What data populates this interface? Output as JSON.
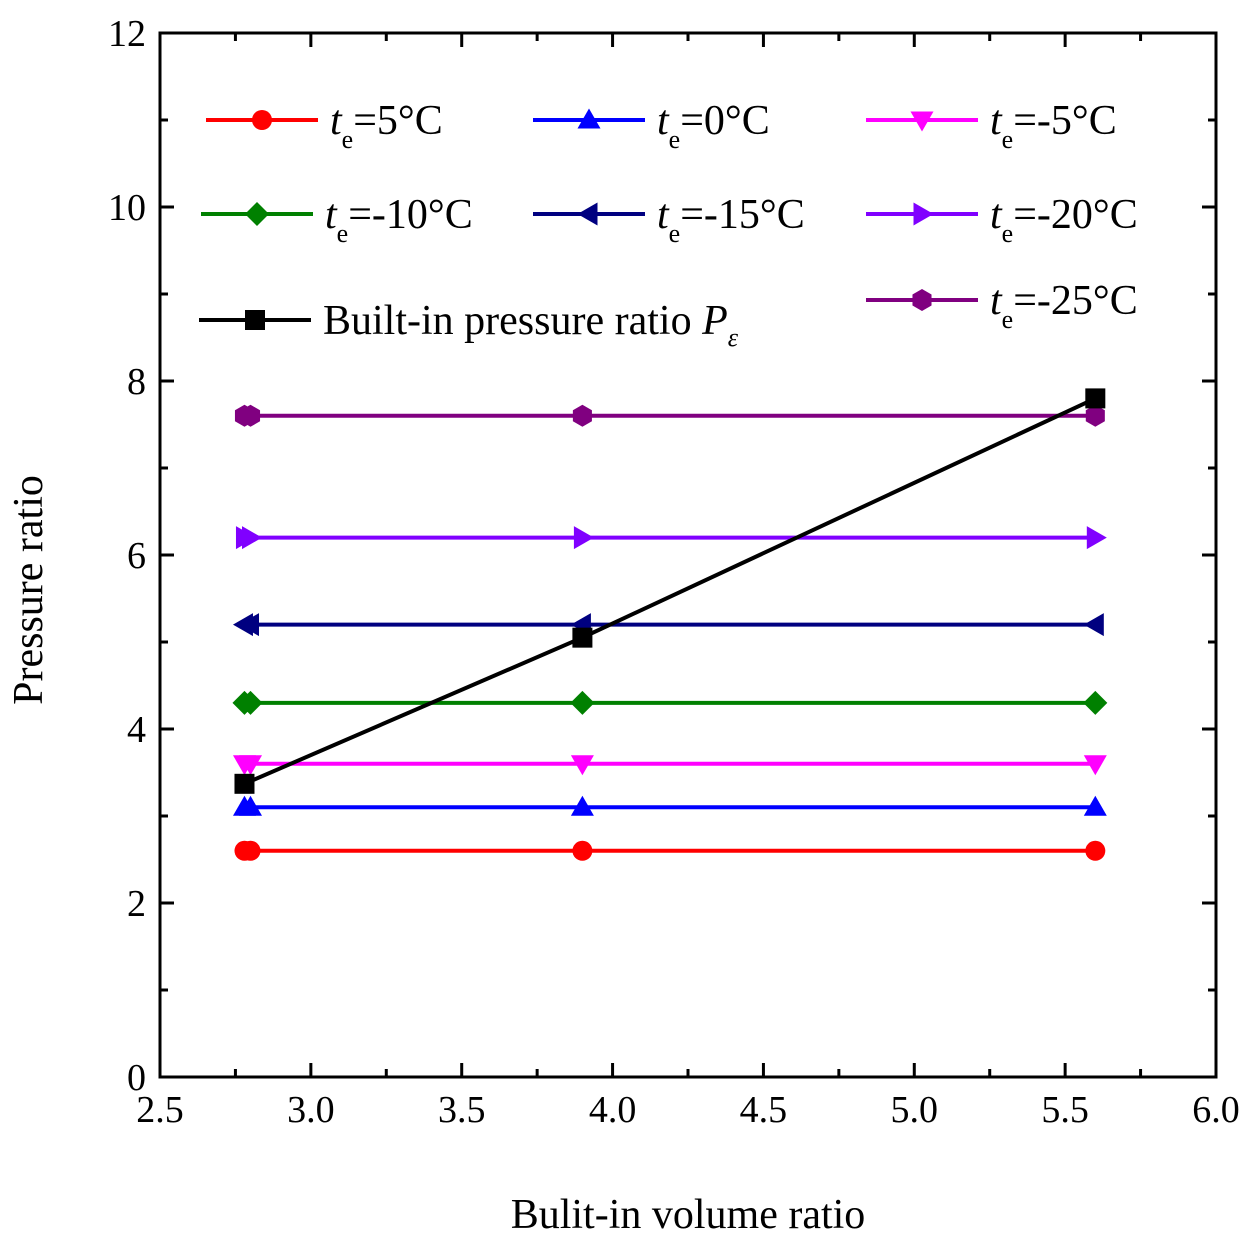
{
  "chart_data": {
    "type": "line",
    "title": "",
    "xlabel": "Bulit-in volume ratio",
    "ylabel": "Pressure ratio",
    "xlim": [
      2.5,
      6.0
    ],
    "ylim": [
      0,
      12
    ],
    "x_ticks": [
      "2.5",
      "3.0",
      "3.5",
      "4.0",
      "4.5",
      "5.0",
      "5.5",
      "6.0"
    ],
    "y_ticks": [
      "0",
      "2",
      "4",
      "6",
      "8",
      "10",
      "12"
    ],
    "grid": false,
    "legend_position": "top",
    "series": [
      {
        "name": "te=5°C",
        "label_var": "t",
        "label_sub": "e",
        "label_rest": "=5°C",
        "color": "#ff0000",
        "marker": "circle",
        "x": [
          2.78,
          2.8,
          3.9,
          5.6
        ],
        "y": [
          2.6,
          2.6,
          2.6,
          2.6
        ]
      },
      {
        "name": "te=0°C",
        "label_var": "t",
        "label_sub": "e",
        "label_rest": "=0°C",
        "color": "#0000ff",
        "marker": "triangle-up",
        "x": [
          2.78,
          2.8,
          3.9,
          5.6
        ],
        "y": [
          3.1,
          3.1,
          3.1,
          3.1
        ]
      },
      {
        "name": "te=-5°C",
        "label_var": "t",
        "label_sub": "e",
        "label_rest": "=-5°C",
        "color": "#ff00ff",
        "marker": "triangle-down",
        "x": [
          2.78,
          2.8,
          3.9,
          5.6
        ],
        "y": [
          3.6,
          3.6,
          3.6,
          3.6
        ]
      },
      {
        "name": "te=-10°C",
        "label_var": "t",
        "label_sub": "e",
        "label_rest": "=-10°C",
        "color": "#008000",
        "marker": "diamond",
        "x": [
          2.78,
          2.8,
          3.9,
          5.6
        ],
        "y": [
          4.3,
          4.3,
          4.3,
          4.3
        ]
      },
      {
        "name": "te=-15°C",
        "label_var": "t",
        "label_sub": "e",
        "label_rest": "=-15°C",
        "color": "#000080",
        "marker": "triangle-left",
        "x": [
          2.78,
          2.8,
          3.9,
          5.6
        ],
        "y": [
          5.2,
          5.2,
          5.2,
          5.2
        ]
      },
      {
        "name": "te=-20°C",
        "label_var": "t",
        "label_sub": "e",
        "label_rest": "=-20°C",
        "color": "#8000ff",
        "marker": "triangle-right",
        "x": [
          2.78,
          2.8,
          3.9,
          5.6
        ],
        "y": [
          6.2,
          6.2,
          6.2,
          6.2
        ]
      },
      {
        "name": "Built-in pressure ratio Pε",
        "label_var": "",
        "label_sub": "",
        "label_rest": "Built-in pressure ratio ",
        "label_tail_var": "P",
        "label_tail_sub": "ε",
        "color": "#000000",
        "marker": "square",
        "x": [
          2.78,
          3.9,
          5.6
        ],
        "y": [
          3.37,
          5.05,
          7.8
        ]
      },
      {
        "name": "te=-25°C",
        "label_var": "t",
        "label_sub": "e",
        "label_rest": "=-25°C",
        "color": "#800080",
        "marker": "hexagon",
        "x": [
          2.78,
          2.8,
          3.9,
          5.6
        ],
        "y": [
          7.6,
          7.6,
          7.6,
          7.6
        ]
      }
    ]
  }
}
